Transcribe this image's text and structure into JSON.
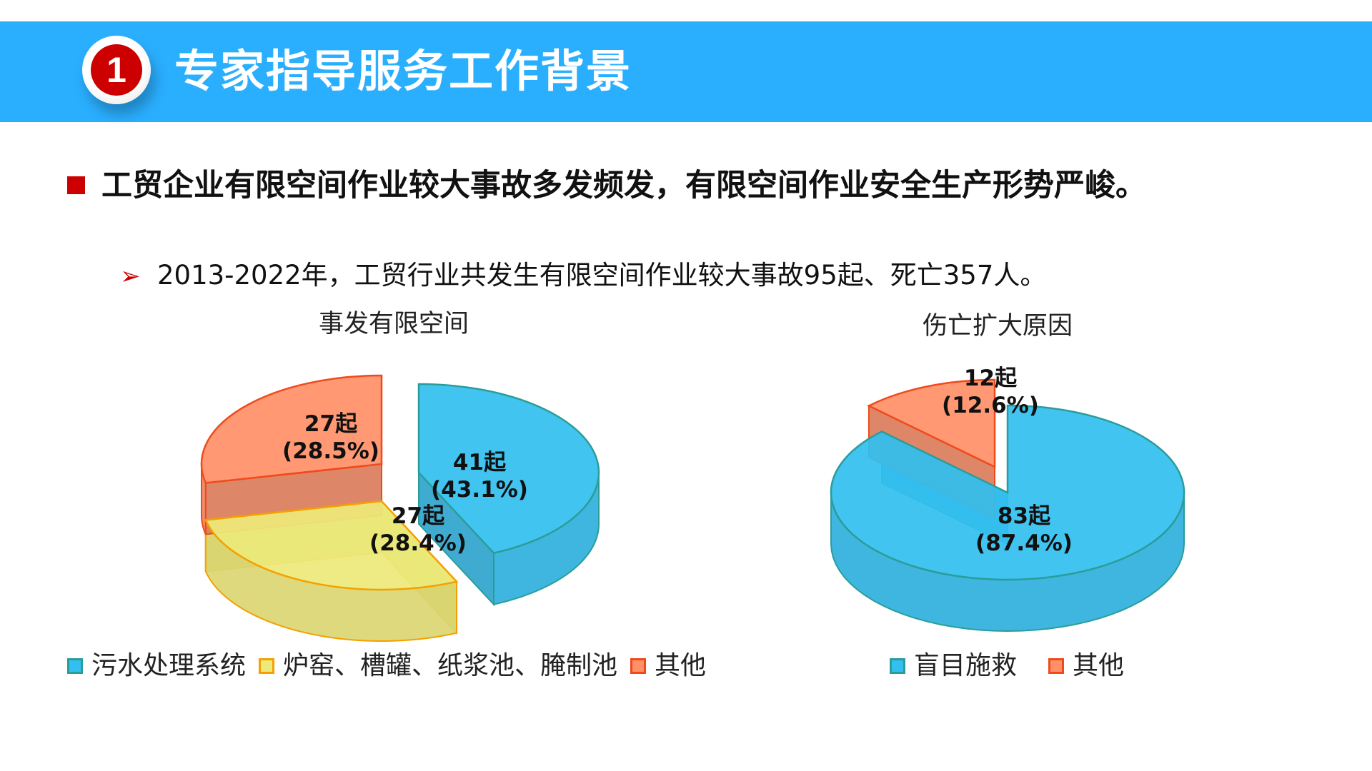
{
  "header": {
    "badge_number": "1",
    "title": "专家指导服务工作背景"
  },
  "headline": "工贸企业有限空间作业较大事故多发频发，有限空间作业安全生产形势严峻。",
  "subline": {
    "arrow": "➢",
    "text": "2013-2022年，工贸行业共发生有限空间作业较大事故95起、死亡357人。"
  },
  "chart_data": [
    {
      "type": "pie",
      "title": "事发有限空间",
      "categories": [
        "污水处理系统",
        "炉窑、槽罐、纸浆池、腌制池",
        "其他"
      ],
      "values": [
        41,
        27,
        27
      ],
      "percent": [
        43.1,
        28.4,
        28.5
      ],
      "labels": [
        [
          "41起",
          "(43.1%)"
        ],
        [
          "27起",
          "(28.4%)"
        ],
        [
          "27起",
          "(28.5%)"
        ]
      ],
      "colors": [
        "#33BFEF",
        "#EDE97B",
        "#FF9068"
      ],
      "edge_colors": [
        "#2A9D9A",
        "#F5A000",
        "#F04A1A"
      ],
      "legend": "bottom"
    },
    {
      "type": "pie",
      "title": "伤亡扩大原因",
      "categories": [
        "盲目施救",
        "其他"
      ],
      "values": [
        83,
        12
      ],
      "percent": [
        87.4,
        12.6
      ],
      "labels": [
        [
          "83起",
          "(87.4%)"
        ],
        [
          "12起",
          "(12.6%)"
        ]
      ],
      "colors": [
        "#33BFEF",
        "#FF9068"
      ],
      "edge_colors": [
        "#2A9D9A",
        "#F04A1A"
      ],
      "legend": "bottom"
    }
  ]
}
